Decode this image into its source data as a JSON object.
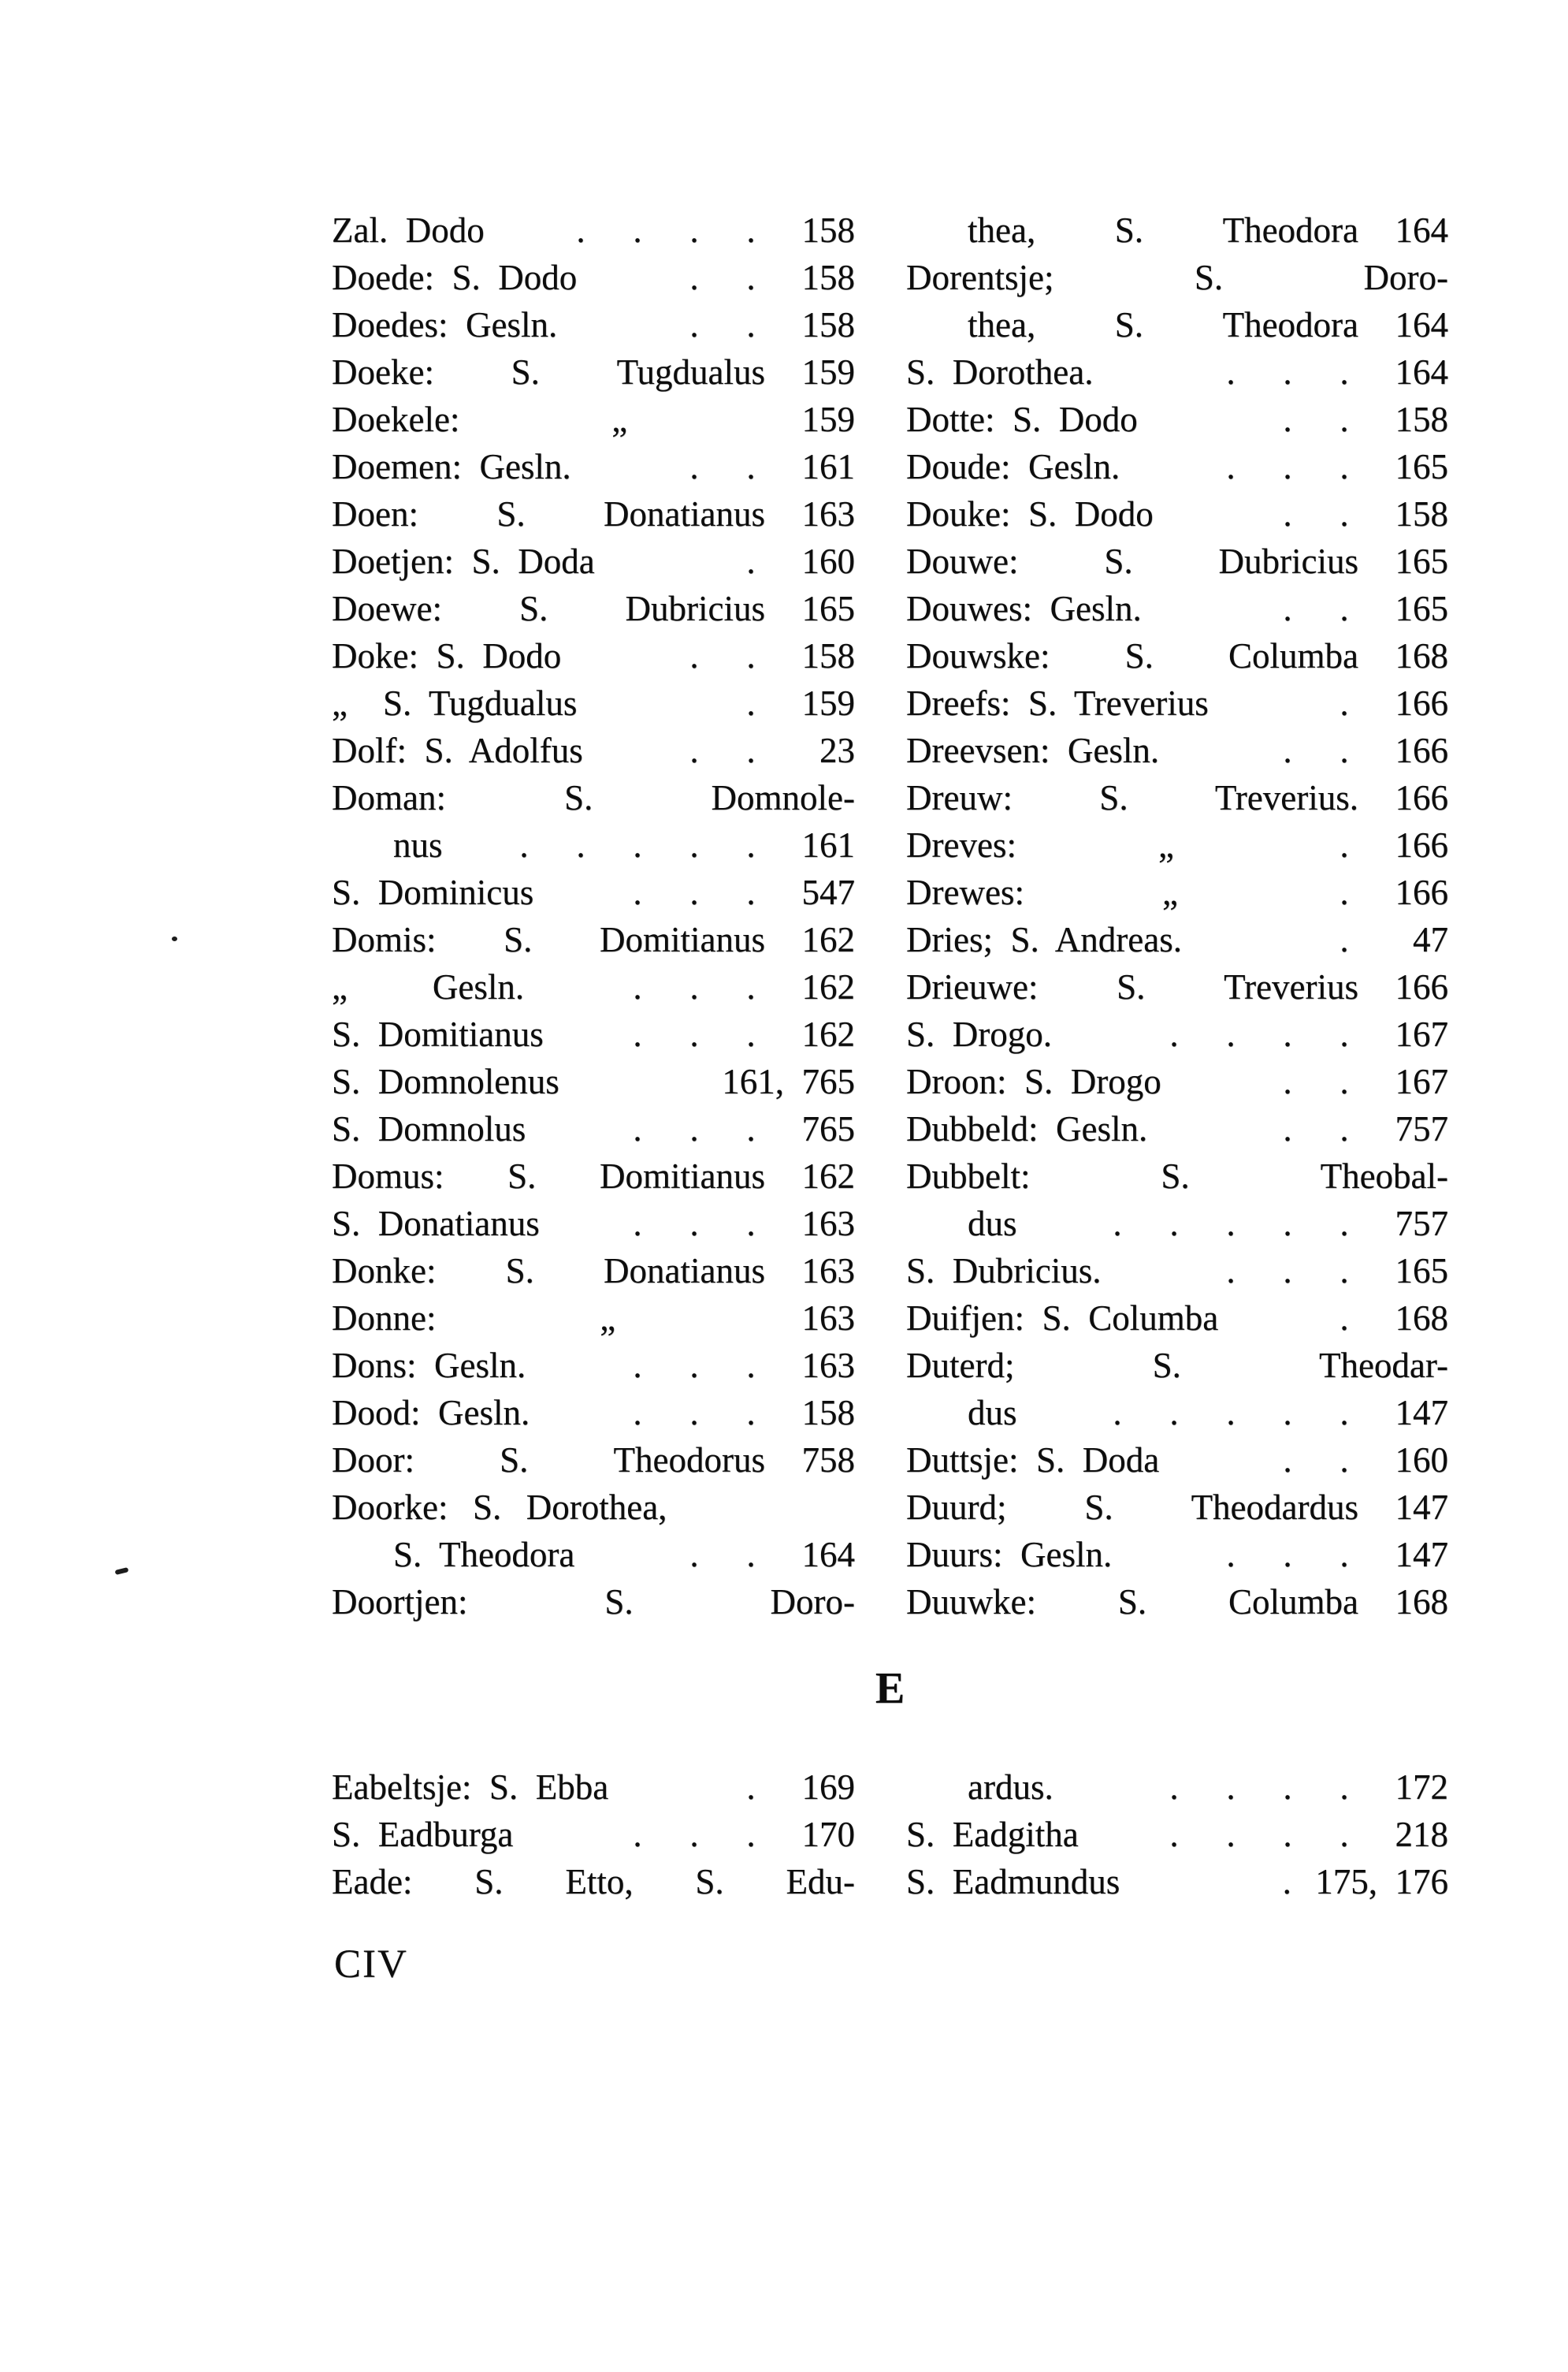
{
  "page": {
    "background": "#ffffff",
    "ink_color": "#0d0d0d",
    "footer_text": "CIV"
  },
  "section_e": {
    "heading": "E"
  },
  "index_d": {
    "left": [
      {
        "text": "Zal. Dodo",
        "dots": 4,
        "page": "158"
      },
      {
        "text": "Doede: S. Dodo",
        "dots": 2,
        "page": "158"
      },
      {
        "text": "Doedes: Gesln.",
        "dots": 2,
        "page": "158"
      },
      {
        "text": "Doeke: S. Tugdualus",
        "fill": true,
        "page": "159"
      },
      {
        "text": "Doekele:",
        "mid": "„",
        "page": "159"
      },
      {
        "text": "Doemen: Gesln.",
        "dots": 2,
        "page": "161"
      },
      {
        "text": "Doen: S. Donatianus",
        "fill": true,
        "page": "163"
      },
      {
        "text": "Doetjen: S. Doda",
        "dots": 1,
        "page": "160"
      },
      {
        "text": "Doewe: S. Dubricius",
        "fill": true,
        "page": "165"
      },
      {
        "text": "Doke: S. Dodo",
        "dots": 2,
        "page": "158"
      },
      {
        "text": "„  S. Tugdualus",
        "dots": 1,
        "page": "159"
      },
      {
        "text": "Dolf: S. Adolfus",
        "dots": 2,
        "page": "23"
      },
      {
        "text": "Doman: S. Domnole-",
        "fill": true
      },
      {
        "text": "nus",
        "indent": 1,
        "dots": 5,
        "page": "161"
      },
      {
        "text": "S. Dominicus",
        "dots": 3,
        "page": "547"
      },
      {
        "text": "Domis: S. Domitianus",
        "fill": true,
        "page": "162"
      },
      {
        "text": "„",
        "mid": "Gesln.",
        "dots": 3,
        "page": "162"
      },
      {
        "text": "S. Domitianus",
        "dots": 3,
        "page": "162"
      },
      {
        "text": "S. Domnolenus",
        "page": "161, 765"
      },
      {
        "text": "S. Domnolus",
        "dots": 3,
        "page": "765"
      },
      {
        "text": "Domus: S. Domitianus",
        "fill": true,
        "page": "162"
      },
      {
        "text": "S. Donatianus",
        "dots": 3,
        "page": "163"
      },
      {
        "text": "Donke: S. Donatianus",
        "fill": true,
        "page": "163"
      },
      {
        "text": "Donne:",
        "mid": "„",
        "page": "163"
      },
      {
        "text": "Dons: Gesln.",
        "dots": 3,
        "page": "163"
      },
      {
        "text": "Dood: Gesln.",
        "dots": 3,
        "page": "158"
      },
      {
        "text": "Door: S. Theodorus",
        "fill": true,
        "page": "758"
      },
      {
        "text": "Doorke: S. Dorothea,",
        "spread": true
      },
      {
        "text": "S. Theodora",
        "indent": 1,
        "dots": 2,
        "page": "164"
      },
      {
        "text": "Doortjen: S. Doro-",
        "fill": true
      }
    ],
    "right": [
      {
        "text": "thea, S. Theodora",
        "indent": 1,
        "fill": true,
        "page": "164"
      },
      {
        "text": "Dorentsje; S. Doro-",
        "fill": true
      },
      {
        "text": "thea, S. Theodora",
        "indent": 1,
        "fill": true,
        "page": "164"
      },
      {
        "text": "S. Dorothea.",
        "dots": 3,
        "page": "164"
      },
      {
        "text": "Dotte: S. Dodo",
        "dots": 2,
        "page": "158"
      },
      {
        "text": "Doude: Gesln.",
        "dots": 3,
        "page": "165"
      },
      {
        "text": "Douke: S. Dodo",
        "dots": 2,
        "page": "158"
      },
      {
        "text": "Douwe: S. Dubricius",
        "fill": true,
        "page": "165"
      },
      {
        "text": "Douwes: Gesln.",
        "dots": 2,
        "page": "165"
      },
      {
        "text": "Douwske: S. Columba",
        "fill": true,
        "page": "168"
      },
      {
        "text": "Dreefs: S. Treverius",
        "dots": 1,
        "page": "166"
      },
      {
        "text": "Dreevsen: Gesln.",
        "dots": 2,
        "page": "166"
      },
      {
        "text": "Dreuw: S. Treverius.",
        "fill": true,
        "page": "166"
      },
      {
        "text": "Dreves:",
        "mid": "„",
        "dots": 1,
        "page": "166"
      },
      {
        "text": "Drewes:",
        "mid": "„",
        "dots": 1,
        "page": "166"
      },
      {
        "text": "Dries; S. Andreas.",
        "dots": 1,
        "page": "47"
      },
      {
        "text": "Drieuwe: S. Treverius",
        "fill": true,
        "page": "166"
      },
      {
        "text": "S. Drogo.",
        "dots": 4,
        "page": "167"
      },
      {
        "text": "Droon: S. Drogo",
        "dots": 2,
        "page": "167"
      },
      {
        "text": "Dubbeld: Gesln.",
        "dots": 2,
        "page": "757"
      },
      {
        "text": "Dubbelt: S. Theobal-",
        "fill": true
      },
      {
        "text": "dus",
        "indent": 1,
        "dots": 5,
        "page": "757"
      },
      {
        "text": "S. Dubricius.",
        "dots": 3,
        "page": "165"
      },
      {
        "text": "Duifjen: S. Columba",
        "dots": 1,
        "page": "168"
      },
      {
        "text": "Duterd; S. Theodar-",
        "fill": true
      },
      {
        "text": "dus",
        "indent": 1,
        "dots": 5,
        "page": "147"
      },
      {
        "text": "Duttsje: S. Doda",
        "dots": 2,
        "page": "160"
      },
      {
        "text": "Duurd; S. Theodardus",
        "fill": true,
        "page": "147"
      },
      {
        "text": "Duurs: Gesln.",
        "dots": 3,
        "page": "147"
      },
      {
        "text": "Duuwke: S. Columba",
        "fill": true,
        "page": "168"
      }
    ]
  },
  "index_e": {
    "left": [
      {
        "text": "Eabeltsje: S. Ebba",
        "dots": 1,
        "page": "169"
      },
      {
        "text": "S. Eadburga",
        "dots": 3,
        "page": "170"
      },
      {
        "text": "Eade: S. Etto, S. Edu-",
        "fill": true
      }
    ],
    "right": [
      {
        "text": "ardus.",
        "indent": 1,
        "dots": 4,
        "page": "172"
      },
      {
        "text": "S. Eadgitha",
        "dots": 4,
        "page": "218"
      },
      {
        "text": "S. Eadmundus",
        "dots": 1,
        "page": "175, 176"
      }
    ]
  }
}
